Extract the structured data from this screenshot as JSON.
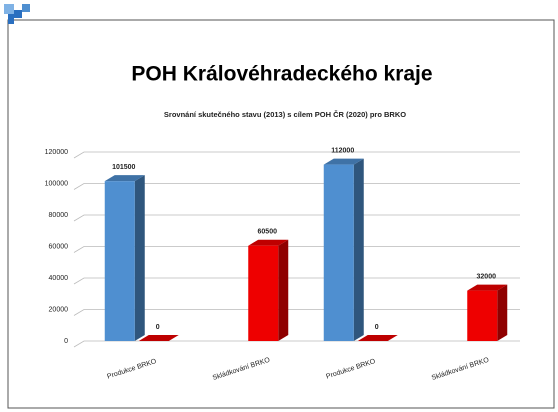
{
  "title": "POH Královéhradeckého kraje",
  "chart_data": {
    "type": "bar3d",
    "title": "Srovnání skutečného stavu (2013) s cílem POH ČR (2020) pro BRKO",
    "categories": [
      "Produkce BRKO",
      "Skládkování BRKO",
      "Produkce BRKO",
      "Skládkování BRKO"
    ],
    "series": [
      {
        "color": "#4f8fd0",
        "values": [
          101500,
          null,
          112000,
          null
        ]
      },
      {
        "color": "#ee0000",
        "values": [
          0,
          60500,
          0,
          32000
        ]
      }
    ],
    "ylim": [
      0,
      120000
    ],
    "yticks": [
      0,
      20000,
      40000,
      60000,
      80000,
      100000,
      120000
    ],
    "grid": true
  }
}
